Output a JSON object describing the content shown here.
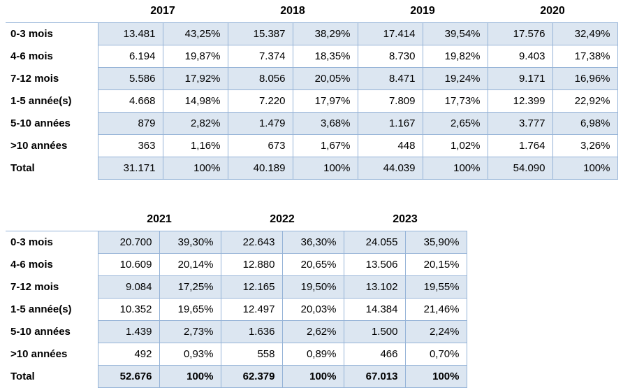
{
  "colors": {
    "band_fill": "#dce6f1",
    "grid_border": "#95b3d7",
    "text": "#000000",
    "page_background": "#ffffff"
  },
  "chart_data": [
    {
      "type": "table",
      "years": [
        "2017",
        "2018",
        "2019",
        "2020"
      ],
      "value_kinds_per_year": [
        "count",
        "percent"
      ],
      "rows": [
        {
          "label": "0-3 mois",
          "cells": [
            "13.481",
            "43,25%",
            "15.387",
            "38,29%",
            "17.414",
            "39,54%",
            "17.576",
            "32,49%"
          ]
        },
        {
          "label": "4-6 mois",
          "cells": [
            "6.194",
            "19,87%",
            "7.374",
            "18,35%",
            "8.730",
            "19,82%",
            "9.403",
            "17,38%"
          ]
        },
        {
          "label": "7-12 mois",
          "cells": [
            "5.586",
            "17,92%",
            "8.056",
            "20,05%",
            "8.471",
            "19,24%",
            "9.171",
            "16,96%"
          ]
        },
        {
          "label": "1-5 année(s)",
          "cells": [
            "4.668",
            "14,98%",
            "7.220",
            "17,97%",
            "7.809",
            "17,73%",
            "12.399",
            "22,92%"
          ]
        },
        {
          "label": "5-10 années",
          "cells": [
            "879",
            "2,82%",
            "1.479",
            "3,68%",
            "1.167",
            "2,65%",
            "3.777",
            "6,98%"
          ]
        },
        {
          "label": ">10 années",
          "cells": [
            "363",
            "1,16%",
            "673",
            "1,67%",
            "448",
            "1,02%",
            "1.764",
            "3,26%"
          ]
        },
        {
          "label": "Total",
          "cells": [
            "31.171",
            "100%",
            "40.189",
            "100%",
            "44.039",
            "100%",
            "54.090",
            "100%"
          ]
        }
      ]
    },
    {
      "type": "table",
      "years": [
        "2021",
        "2022",
        "2023"
      ],
      "value_kinds_per_year": [
        "count",
        "percent"
      ],
      "rows": [
        {
          "label": "0-3 mois",
          "cells": [
            "20.700",
            "39,30%",
            "22.643",
            "36,30%",
            "24.055",
            "35,90%"
          ]
        },
        {
          "label": "4-6 mois",
          "cells": [
            "10.609",
            "20,14%",
            "12.880",
            "20,65%",
            "13.506",
            "20,15%"
          ]
        },
        {
          "label": "7-12 mois",
          "cells": [
            "9.084",
            "17,25%",
            "12.165",
            "19,50%",
            "13.102",
            "19,55%"
          ]
        },
        {
          "label": "1-5 année(s)",
          "cells": [
            "10.352",
            "19,65%",
            "12.497",
            "20,03%",
            "14.384",
            "21,46%"
          ]
        },
        {
          "label": "5-10 années",
          "cells": [
            "1.439",
            "2,73%",
            "1.636",
            "2,62%",
            "1.500",
            "2,24%"
          ]
        },
        {
          "label": ">10 années",
          "cells": [
            "492",
            "0,93%",
            "558",
            "0,89%",
            "466",
            "0,70%"
          ]
        },
        {
          "label": "Total",
          "cells": [
            "52.676",
            "100%",
            "62.379",
            "100%",
            "67.013",
            "100%"
          ]
        }
      ]
    }
  ]
}
